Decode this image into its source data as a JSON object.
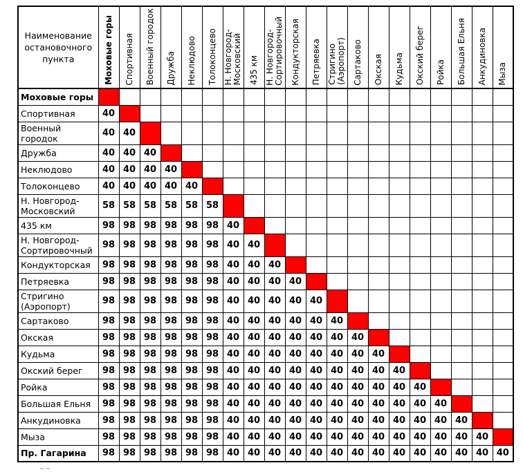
{
  "table": {
    "corner_header": "Наименование остановочного пункта",
    "colors": {
      "diagonal_fill": "#ff0000",
      "border": "#000000",
      "text": "#000000",
      "background": "#ffffff"
    },
    "columns": [
      {
        "label": "Моховые горы",
        "bold": true
      },
      {
        "label": "Спортивная",
        "bold": false
      },
      {
        "label": "Военный городок",
        "bold": false
      },
      {
        "label": "Дружба",
        "bold": false
      },
      {
        "label": "Неклюдово",
        "bold": false
      },
      {
        "label": "Толоконцево",
        "bold": false
      },
      {
        "label": "Н. Новгород-\nМосковский",
        "bold": false
      },
      {
        "label": "435 км",
        "bold": false
      },
      {
        "label": "Н. Новгород-\nСортировочный",
        "bold": false
      },
      {
        "label": "Кондукторская",
        "bold": false
      },
      {
        "label": "Петряевка",
        "bold": false
      },
      {
        "label": "Стригино\n(Аэропорт)",
        "bold": false
      },
      {
        "label": "Сартаково",
        "bold": false
      },
      {
        "label": "Окская",
        "bold": false
      },
      {
        "label": "Кудьма",
        "bold": false
      },
      {
        "label": "Окский берег",
        "bold": false
      },
      {
        "label": "Ройка",
        "bold": false
      },
      {
        "label": "Большая Ельня",
        "bold": false
      },
      {
        "label": "Анкудиновка",
        "bold": false
      },
      {
        "label": "Мыза",
        "bold": false
      }
    ],
    "rows": [
      {
        "label": "Моховые горы",
        "bold": true,
        "red_col": 0,
        "cells": []
      },
      {
        "label": "Спортивная",
        "bold": false,
        "red_col": 1,
        "cells": [
          "40"
        ]
      },
      {
        "label": "Военный городок",
        "bold": false,
        "red_col": 2,
        "cells": [
          "40",
          "40"
        ]
      },
      {
        "label": "Дружба",
        "bold": false,
        "red_col": 3,
        "cells": [
          "40",
          "40",
          "40"
        ]
      },
      {
        "label": "Неклюдово",
        "bold": false,
        "red_col": 4,
        "cells": [
          "40",
          "40",
          "40",
          "40"
        ]
      },
      {
        "label": "Толоконцево",
        "bold": false,
        "red_col": 5,
        "cells": [
          "40",
          "40",
          "40",
          "40",
          "40"
        ]
      },
      {
        "label": "Н. Новгород-Московский",
        "bold": false,
        "red_col": 6,
        "cells": [
          "58",
          "58",
          "58",
          "58",
          "58",
          "58"
        ]
      },
      {
        "label": "435 км",
        "bold": false,
        "red_col": 7,
        "cells": [
          "98",
          "98",
          "98",
          "98",
          "98",
          "98",
          "40"
        ]
      },
      {
        "label": "Н. Новгород-Сортировочный",
        "bold": false,
        "red_col": 8,
        "cells": [
          "98",
          "98",
          "98",
          "98",
          "98",
          "98",
          "40",
          "40"
        ]
      },
      {
        "label": "Кондукторская",
        "bold": false,
        "red_col": 9,
        "cells": [
          "98",
          "98",
          "98",
          "98",
          "98",
          "98",
          "40",
          "40",
          "40"
        ]
      },
      {
        "label": "Петряевка",
        "bold": false,
        "red_col": 10,
        "cells": [
          "98",
          "98",
          "98",
          "98",
          "98",
          "98",
          "40",
          "40",
          "40",
          "40"
        ]
      },
      {
        "label": "Стригино (Аэропорт)",
        "bold": false,
        "red_col": 11,
        "cells": [
          "98",
          "98",
          "98",
          "98",
          "98",
          "98",
          "40",
          "40",
          "40",
          "40",
          "40"
        ]
      },
      {
        "label": "Сартаково",
        "bold": false,
        "red_col": 12,
        "cells": [
          "98",
          "98",
          "98",
          "98",
          "98",
          "98",
          "40",
          "40",
          "40",
          "40",
          "40",
          "40"
        ]
      },
      {
        "label": "Окская",
        "bold": false,
        "red_col": 13,
        "cells": [
          "98",
          "98",
          "98",
          "98",
          "98",
          "98",
          "40",
          "40",
          "40",
          "40",
          "40",
          "40",
          "40"
        ]
      },
      {
        "label": "Кудьма",
        "bold": false,
        "red_col": 14,
        "cells": [
          "98",
          "98",
          "98",
          "98",
          "98",
          "98",
          "40",
          "40",
          "40",
          "40",
          "40",
          "40",
          "40",
          "40"
        ]
      },
      {
        "label": "Окский берег",
        "bold": false,
        "red_col": 15,
        "cells": [
          "98",
          "98",
          "98",
          "98",
          "98",
          "98",
          "40",
          "40",
          "40",
          "40",
          "40",
          "40",
          "40",
          "40",
          "40"
        ]
      },
      {
        "label": "Ройка",
        "bold": false,
        "red_col": 16,
        "cells": [
          "98",
          "98",
          "98",
          "98",
          "98",
          "98",
          "40",
          "40",
          "40",
          "40",
          "40",
          "40",
          "40",
          "40",
          "40",
          "40"
        ]
      },
      {
        "label": "Большая Ельня",
        "bold": false,
        "red_col": 17,
        "cells": [
          "98",
          "98",
          "98",
          "98",
          "98",
          "98",
          "40",
          "40",
          "40",
          "40",
          "40",
          "40",
          "40",
          "40",
          "40",
          "40",
          "40"
        ]
      },
      {
        "label": "Анкудиновка",
        "bold": false,
        "red_col": 18,
        "cells": [
          "98",
          "98",
          "98",
          "98",
          "98",
          "98",
          "40",
          "40",
          "40",
          "40",
          "40",
          "40",
          "40",
          "40",
          "40",
          "40",
          "40",
          "40"
        ]
      },
      {
        "label": "Мыза",
        "bold": false,
        "red_col": 19,
        "cells": [
          "98",
          "98",
          "98",
          "98",
          "98",
          "98",
          "40",
          "40",
          "40",
          "40",
          "40",
          "40",
          "40",
          "40",
          "40",
          "40",
          "40",
          "40",
          "40"
        ]
      },
      {
        "label": "Пр. Гагарина",
        "bold": true,
        "red_col": null,
        "cells": [
          "98",
          "98",
          "98",
          "98",
          "98",
          "98",
          "40",
          "40",
          "40",
          "40",
          "40",
          "40",
          "40",
          "40",
          "40",
          "40",
          "40",
          "40",
          "40",
          "40"
        ]
      }
    ]
  }
}
